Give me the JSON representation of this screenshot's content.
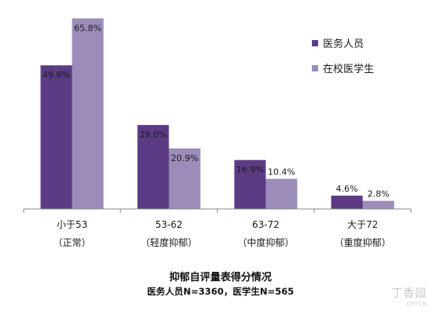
{
  "chart_data": {
    "type": "bar",
    "categories": [
      [
        "小于53",
        "（正常）"
      ],
      [
        "53-62",
        "（轻度抑郁）"
      ],
      [
        "63-72",
        "（中度抑郁）"
      ],
      [
        "大于72",
        "（重度抑郁）"
      ]
    ],
    "series": [
      {
        "name": "医务人员",
        "values": [
          49.6,
          29.0,
          16.9,
          4.6
        ],
        "labels": [
          "49.6%",
          "29.0%",
          "16.9%",
          "4.6%"
        ],
        "color": "#5b3c84"
      },
      {
        "name": "在校医学生",
        "values": [
          65.8,
          20.9,
          10.4,
          2.8
        ],
        "labels": [
          "65.8%",
          "20.9%",
          "10.4%",
          "2.8%"
        ],
        "color": "#9c8cb9"
      }
    ],
    "ylim": [
      0,
      70
    ],
    "grid": false,
    "legend": "top-right",
    "title": "抑郁自评量表得分情况",
    "subtitle": "医务人员N=3360，医学生N=565"
  },
  "watermark": {
    "name": "丁香园",
    "url": "DXY.CN"
  }
}
